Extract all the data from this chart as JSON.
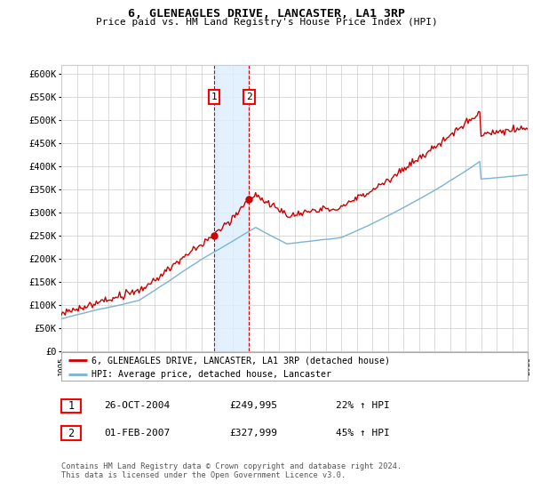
{
  "title1": "6, GLENEAGLES DRIVE, LANCASTER, LA1 3RP",
  "title2": "Price paid vs. HM Land Registry's House Price Index (HPI)",
  "legend_line1": "6, GLENEAGLES DRIVE, LANCASTER, LA1 3RP (detached house)",
  "legend_line2": "HPI: Average price, detached house, Lancaster",
  "sale1_date": "26-OCT-2004",
  "sale1_price": "£249,995",
  "sale1_hpi": "22% ↑ HPI",
  "sale2_date": "01-FEB-2007",
  "sale2_price": "£327,999",
  "sale2_hpi": "45% ↑ HPI",
  "footer": "Contains HM Land Registry data © Crown copyright and database right 2024.\nThis data is licensed under the Open Government Licence v3.0.",
  "hpi_color": "#7ab3d4",
  "price_color": "#cc0000",
  "shade_color": "#ddeeff",
  "grid_color": "#cccccc",
  "background_color": "#ffffff",
  "ylim_min": 0,
  "ylim_max": 620000,
  "sale1_year": 2004.82,
  "sale2_year": 2007.08,
  "sale1_price_val": 249995,
  "sale2_price_val": 327999,
  "ytick_labels": [
    "£0",
    "£50K",
    "£100K",
    "£150K",
    "£200K",
    "£250K",
    "£300K",
    "£350K",
    "£400K",
    "£450K",
    "£500K",
    "£550K",
    "£600K"
  ],
  "ytick_vals": [
    0,
    50000,
    100000,
    150000,
    200000,
    250000,
    300000,
    350000,
    400000,
    450000,
    500000,
    550000,
    600000
  ]
}
